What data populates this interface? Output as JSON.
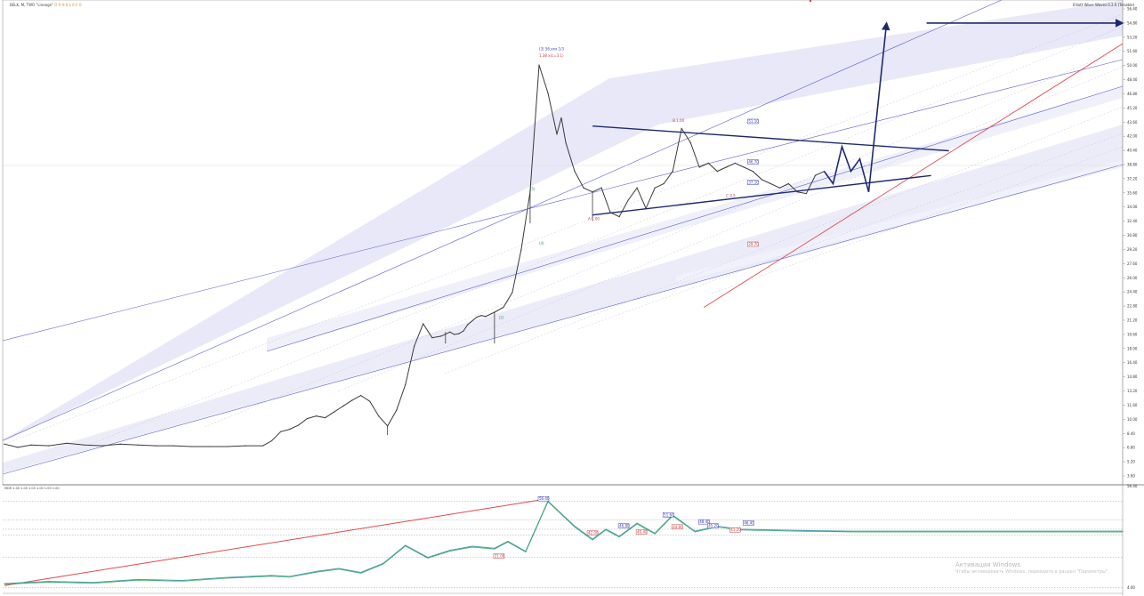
{
  "header": {
    "symbol_info": "BELK, M, TWO \"Lineage\"",
    "ohlc_text": "O 0 H 0 L 0 C 0",
    "indicator_name": "Elliott Wave Waves 0.2.0 (Tenable)",
    "lower_panel_info": "MDR 1.00 1.00 1.00 1.00 1.00 1.00"
  },
  "watermark": {
    "title": "Активация Windows",
    "subtitle": "Чтобы активировать Windows, перейдите в раздел \"Параметры\"."
  },
  "colors": {
    "price": "#3a3a3a",
    "channel_fill": "#e6e6f8",
    "channel_line": "#5a5ad0",
    "projection": "#1e2a6e",
    "trend_red": "#e04a4a",
    "wave_green": "#2f9f5a",
    "wave_teal": "#4aa0a8"
  },
  "chart_data": {
    "type": "line",
    "title": "",
    "xlabel": "",
    "ylabel": "",
    "ylim": [
      0,
      57
    ],
    "grid": false,
    "price_series": {
      "x": [
        0,
        3,
        6,
        10,
        14,
        18,
        22,
        26,
        30,
        34,
        38,
        42,
        46,
        50,
        54,
        58,
        60,
        62,
        64,
        66,
        68,
        70,
        72,
        74,
        76,
        78,
        80,
        82,
        84,
        86,
        88,
        90,
        92,
        94,
        96,
        98,
        100,
        101,
        102,
        103,
        104,
        106,
        107,
        108,
        110,
        112,
        114,
        116,
        118,
        120,
        122,
        124,
        125,
        126,
        128,
        130,
        132,
        134,
        136,
        138,
        140,
        142,
        144,
        146,
        148,
        150,
        152,
        154,
        156,
        158,
        160,
        162,
        164,
        166,
        168,
        170,
        172,
        174,
        176,
        178,
        180,
        182,
        184
      ],
      "y": [
        4.4,
        4.0,
        4.3,
        4.2,
        4.5,
        4.3,
        4.2,
        4.4,
        4.3,
        4.2,
        4.2,
        4.1,
        4.1,
        4.1,
        4.2,
        4.2,
        4.8,
        5.9,
        6.2,
        6.7,
        7.5,
        7.8,
        7.6,
        8.3,
        9.0,
        9.7,
        10.3,
        9.6,
        7.8,
        6.6,
        8.5,
        11.6,
        16.3,
        19.0,
        17.3,
        17.5,
        18.0,
        17.7,
        17.8,
        18.1,
        18.9,
        19.8,
        20.0,
        19.9,
        20.4,
        21.0,
        22.8,
        28.0,
        35.0,
        50.4,
        47.0,
        42.0,
        44.0,
        41.0,
        37.5,
        35.5,
        35.0,
        35.5,
        32.5,
        32.0,
        34.0,
        35.5,
        33.0,
        35.5,
        36.0,
        37.5,
        42.7,
        41.0,
        38.0,
        38.5,
        37.5,
        38.0,
        38.5,
        38.0,
        37.5,
        36.5,
        36.0,
        35.5,
        36.0,
        35.0,
        34.8,
        37.0,
        37.5
      ]
    },
    "price_low_wicks": [
      {
        "x": 86,
        "y": 5.5
      },
      {
        "x": 99,
        "y": 16.6
      },
      {
        "x": 110,
        "y": 16.6
      },
      {
        "x": 118,
        "y": 31.2
      },
      {
        "x": 132,
        "y": 31.5
      }
    ],
    "projection_path": {
      "x": [
        184,
        186,
        188,
        190,
        192,
        194,
        198,
        207,
        251
      ],
      "y": [
        37.5,
        36.0,
        40.5,
        37.5,
        39.0,
        35.0,
        55.5,
        55.5,
        55.5
      ]
    },
    "triangle_lines": [
      {
        "x": [
          132,
          212
        ],
        "y": [
          43.0,
          40.0
        ]
      },
      {
        "x": [
          132,
          208
        ],
        "y": [
          32.2,
          37.0
        ]
      }
    ],
    "red_trendline": {
      "x": [
        157,
        251
      ],
      "y": [
        21.0,
        53.0
      ]
    },
    "tick_labels": [
      "56.40",
      "54.80",
      "53.20",
      "51.60",
      "50.00",
      "48.40",
      "46.80",
      "45.20",
      "43.60",
      "42.00",
      "40.40",
      "38.80",
      "37.20",
      "35.60",
      "34.00",
      "32.40",
      "30.80",
      "29.20",
      "27.60",
      "26.00",
      "24.40",
      "22.80",
      "21.20",
      "19.60",
      "18.00",
      "16.40",
      "14.80",
      "13.20",
      "11.60",
      "10.00",
      "8.40",
      "6.80",
      "5.20",
      "3.60"
    ],
    "annotations": [
      {
        "text": "(3) 56.xxx 1/3",
        "x": 120,
        "y": 52.2,
        "color": "#3a3ab0"
      },
      {
        "text": "1.38 x(c=3.1)",
        "x": 120,
        "y": 51.4,
        "color": "#c04040"
      },
      {
        "text": "B 1.00",
        "x": 150,
        "y": 43.5,
        "color": "#c04040"
      },
      {
        "text": "A 1.00",
        "x": 131,
        "y": 31.6,
        "color": "#c04040"
      },
      {
        "text": "C 0.5",
        "x": 162,
        "y": 34.4,
        "color": "#c04040"
      },
      {
        "text": "(5)",
        "x": 118,
        "y": 35.2,
        "color": "#2f9f5a"
      },
      {
        "text": "(4)",
        "x": 120,
        "y": 28.6,
        "color": "#2f9f5a"
      },
      {
        "text": "(2)",
        "x": 111,
        "y": 19.6,
        "color": "#2f9f5a"
      }
    ],
    "boxed_labels": [
      {
        "text": "51.10",
        "x": 167,
        "y": 43.4,
        "color": "#3a3ab0"
      },
      {
        "text": "46.70",
        "x": 167,
        "y": 38.5,
        "color": "#3a3ab0"
      },
      {
        "text": "37.10",
        "x": 167,
        "y": 36.0,
        "color": "#3a3ab0"
      },
      {
        "text": "29.70",
        "x": 167,
        "y": 28.5,
        "color": "#c04040"
      }
    ],
    "lower_panel": {
      "ylim": [
        0,
        10
      ],
      "teal_series": {
        "x": [
          0,
          10,
          20,
          30,
          40,
          50,
          60,
          64,
          70,
          75,
          80,
          85,
          90,
          95,
          100,
          105,
          110,
          113,
          117,
          122,
          128,
          132,
          135,
          138,
          142,
          146,
          150,
          155,
          160,
          165,
          175,
          190,
          251
        ],
        "y": [
          0.8,
          1.0,
          0.9,
          1.2,
          1.1,
          1.4,
          1.6,
          1.5,
          2.0,
          2.3,
          1.9,
          2.8,
          4.6,
          3.4,
          4.1,
          4.5,
          4.3,
          5.0,
          4.0,
          9.0,
          6.5,
          5.2,
          6.2,
          5.5,
          6.8,
          5.8,
          7.6,
          6.0,
          6.5,
          6.2,
          6.1,
          6.0,
          6.0
        ]
      },
      "red_line": {
        "x": [
          0,
          120
        ],
        "y": [
          0.6,
          9.1
        ]
      },
      "reference_levels": [
        9.0,
        7.1,
        6.2,
        5.6,
        3.4,
        0.4
      ],
      "markers": [
        {
          "text": "56.40",
          "x": 120,
          "y": 9.1,
          "color": "#3a3ab0"
        },
        {
          "text": "42.00",
          "x": 131,
          "y": 5.7,
          "color": "#c04040"
        },
        {
          "text": "46.80",
          "x": 138,
          "y": 6.4,
          "color": "#3a3ab0"
        },
        {
          "text": "40.40",
          "x": 142,
          "y": 5.8,
          "color": "#c04040"
        },
        {
          "text": "51.60",
          "x": 148,
          "y": 7.5,
          "color": "#3a3ab0"
        },
        {
          "text": "44.80",
          "x": 150,
          "y": 6.3,
          "color": "#c04040"
        },
        {
          "text": "48.40",
          "x": 156,
          "y": 6.8,
          "color": "#3a3ab0"
        },
        {
          "text": "45.20",
          "x": 158,
          "y": 6.4,
          "color": "#3a3ab0"
        },
        {
          "text": "41.20",
          "x": 163,
          "y": 6.0,
          "color": "#c04040"
        },
        {
          "text": "46.40",
          "x": 166,
          "y": 6.7,
          "color": "#3a3ab0"
        },
        {
          "text": "21.00",
          "x": 110,
          "y": 3.4,
          "color": "#c04040"
        }
      ],
      "tick_labels": [
        "56.40",
        "4.00"
      ]
    }
  }
}
